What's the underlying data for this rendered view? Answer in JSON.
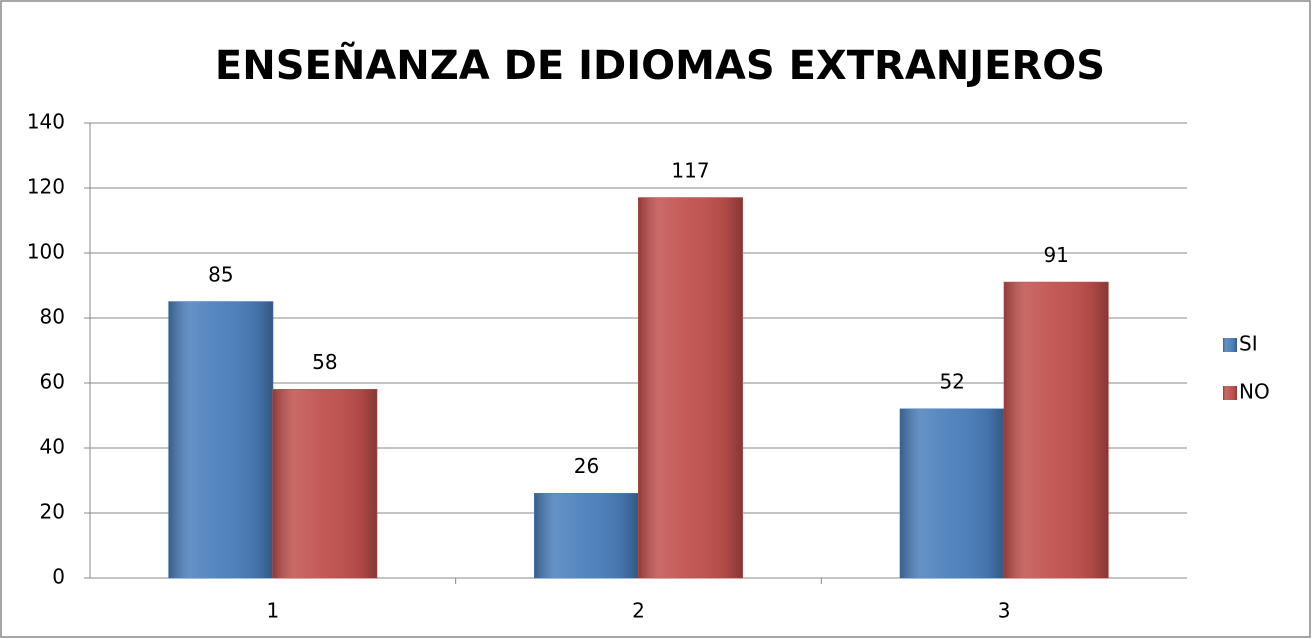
{
  "chart_data": {
    "type": "bar",
    "title": "ENSEÑANZA DE IDIOMAS EXTRANJEROS",
    "categories": [
      "1",
      "2",
      "3"
    ],
    "series": [
      {
        "name": "SI",
        "color": "#4a7ebb",
        "values": [
          85,
          26,
          52
        ]
      },
      {
        "name": "NO",
        "color": "#c0504d",
        "values": [
          58,
          117,
          91
        ]
      }
    ],
    "ylim": [
      0,
      140
    ],
    "yticks": [
      0,
      20,
      40,
      60,
      80,
      100,
      120,
      140
    ],
    "grid": true,
    "legend": "right"
  }
}
